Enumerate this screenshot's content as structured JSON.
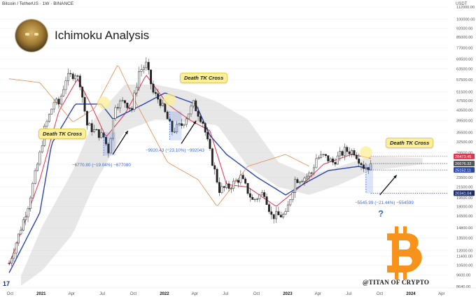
{
  "header": {
    "symbol_line": "Bitcoin / TetherUS · 1W · BINANCE",
    "currency": "USDT"
  },
  "title": "Ichimoku Analysis",
  "watermark": "@TITAN OF CRYPTO",
  "tv_logo": "17",
  "annotations": {
    "tk1": "Death TK Cross",
    "tk2": "Death TK Cross",
    "tk3": "Death TK Cross",
    "measure1": "−6770.80 (−19.04%) −677080",
    "measure2": "−9920.43 (−23.10%) −992043",
    "measure3": "−5545.99 (−21.44%) −554599",
    "question": "?"
  },
  "colors": {
    "up_candle": "#222222",
    "down_candle": "#222222",
    "tenkan": "#e0344f",
    "kijun": "#2c45a8",
    "chikou": "#e8884d",
    "cloud": "#c9c9c9",
    "measure": "#3d6bd6",
    "callout": "#fbef9a"
  },
  "chart_data": {
    "type": "candlestick",
    "title": "",
    "symbol": "BTC/USDT",
    "interval": "1W",
    "exchange": "BINANCE",
    "yscale": "log",
    "ylim": [
      8640,
      112000
    ],
    "y_ticks": [
      "112000.00",
      "100000.00",
      "92000.00",
      "85000.00",
      "77000.00",
      "69500.00",
      "63500.00",
      "57500.00",
      "51500.00",
      "47500.00",
      "43500.00",
      "39500.00",
      "35500.00",
      "32500.00",
      "29500.00",
      "26500.00",
      "23500.00",
      "21500.00",
      "19500.00",
      "18000.00",
      "16500.00",
      "14800.00",
      "13500.00",
      "12000.00",
      "11400.00",
      "10500.00",
      "9600.00",
      "8640.00"
    ],
    "x_ticks": [
      "Oct",
      "2021",
      "Apr",
      "Jul",
      "Oct",
      "2022",
      "Apr",
      "Jul",
      "Oct",
      "2023",
      "Apr",
      "Jul",
      "Oct",
      "2024",
      "Apr"
    ],
    "price_badges": [
      {
        "value": "28473.45",
        "color": "#e0344f"
      },
      {
        "value": "26676.32",
        "color": "#555555"
      },
      {
        "value": "25152.11",
        "color": "#2c45a8"
      },
      {
        "value": "20341.04",
        "color": "#1a2b6b"
      }
    ],
    "series": [
      {
        "name": "BTC price (weekly)",
        "points": [
          [
            "2020-09-28",
            10700
          ],
          [
            "2020-10-26",
            13800
          ],
          [
            "2020-11-23",
            18200
          ],
          [
            "2020-12-28",
            29000
          ],
          [
            "2021-01-11",
            36500
          ],
          [
            "2021-02-08",
            47000
          ],
          [
            "2021-02-22",
            46000
          ],
          [
            "2021-03-15",
            58000
          ],
          [
            "2021-04-12",
            61000
          ],
          [
            "2021-04-26",
            56000
          ],
          [
            "2021-05-17",
            38000
          ],
          [
            "2021-06-07",
            36000
          ],
          [
            "2021-07-05",
            34000
          ],
          [
            "2021-07-19",
            30000
          ],
          [
            "2021-08-09",
            46000
          ],
          [
            "2021-09-06",
            47000
          ],
          [
            "2021-09-27",
            44000
          ],
          [
            "2021-10-18",
            62000
          ],
          [
            "2021-11-08",
            66000
          ],
          [
            "2021-11-29",
            51000
          ],
          [
            "2021-12-20",
            47000
          ],
          [
            "2022-01-24",
            36000
          ],
          [
            "2022-02-21",
            38000
          ],
          [
            "2022-03-28",
            46000
          ],
          [
            "2022-04-25",
            39000
          ],
          [
            "2022-05-16",
            29500
          ],
          [
            "2022-06-13",
            21000
          ],
          [
            "2022-07-11",
            21500
          ],
          [
            "2022-08-15",
            23500
          ],
          [
            "2022-09-19",
            19000
          ],
          [
            "2022-10-24",
            20500
          ],
          [
            "2022-11-14",
            16500
          ],
          [
            "2022-12-26",
            16600
          ],
          [
            "2023-01-23",
            23000
          ],
          [
            "2023-02-20",
            23500
          ],
          [
            "2023-03-13",
            24500
          ],
          [
            "2023-03-27",
            28000
          ],
          [
            "2023-04-17",
            28500
          ],
          [
            "2023-05-15",
            27000
          ],
          [
            "2023-06-19",
            30000
          ],
          [
            "2023-07-17",
            29800
          ],
          [
            "2023-08-14",
            26000
          ],
          [
            "2023-09-04",
            25900
          ]
        ]
      },
      {
        "name": "Tenkan-sen",
        "points": [
          [
            "2020-09-28",
            10500
          ],
          [
            "2020-12-28",
            23000
          ],
          [
            "2021-02-22",
            43000
          ],
          [
            "2021-04-19",
            58000
          ],
          [
            "2021-05-31",
            45000
          ],
          [
            "2021-07-12",
            34000
          ],
          [
            "2021-09-06",
            42000
          ],
          [
            "2021-11-08",
            60000
          ],
          [
            "2022-01-10",
            46000
          ],
          [
            "2022-03-14",
            40000
          ],
          [
            "2022-05-16",
            36000
          ],
          [
            "2022-07-04",
            22000
          ],
          [
            "2022-09-05",
            21500
          ],
          [
            "2022-11-28",
            18000
          ],
          [
            "2023-02-06",
            21500
          ],
          [
            "2023-04-17",
            26500
          ],
          [
            "2023-07-10",
            29000
          ],
          [
            "2023-09-04",
            28000
          ]
        ]
      },
      {
        "name": "Kijun-sen",
        "points": [
          [
            "2020-09-28",
            9800
          ],
          [
            "2020-12-28",
            17000
          ],
          [
            "2021-02-01",
            32000
          ],
          [
            "2021-04-12",
            46000
          ],
          [
            "2021-06-28",
            46000
          ],
          [
            "2021-08-02",
            40000
          ],
          [
            "2021-11-01",
            46000
          ],
          [
            "2022-01-03",
            51000
          ],
          [
            "2022-02-07",
            49000
          ],
          [
            "2022-04-04",
            46000
          ],
          [
            "2022-05-16",
            34500
          ],
          [
            "2022-07-04",
            29000
          ],
          [
            "2022-10-03",
            23500
          ],
          [
            "2022-12-26",
            20000
          ],
          [
            "2023-02-27",
            22500
          ],
          [
            "2023-05-01",
            25000
          ],
          [
            "2023-07-31",
            26000
          ],
          [
            "2023-09-04",
            25200
          ]
        ]
      },
      {
        "name": "Chikou span",
        "points": [
          [
            "2020-09-28",
            58000
          ],
          [
            "2020-12-28",
            56000
          ],
          [
            "2021-04-05",
            39000
          ],
          [
            "2021-06-07",
            44000
          ],
          [
            "2021-08-16",
            66000
          ],
          [
            "2021-10-11",
            46000
          ],
          [
            "2022-01-10",
            27000
          ],
          [
            "2022-04-11",
            23000
          ],
          [
            "2022-06-06",
            18000
          ],
          [
            "2022-09-05",
            26000
          ],
          [
            "2022-12-26",
            29000
          ],
          [
            "2023-03-06",
            26000
          ]
        ]
      }
    ],
    "cloud": {
      "name": "Kumo",
      "upper": [
        [
          "2020-11-02",
          9500
        ],
        [
          "2021-01-04",
          15000
        ],
        [
          "2021-04-05",
          25000
        ],
        [
          "2021-06-07",
          40000
        ],
        [
          "2021-09-06",
          55000
        ],
        [
          "2021-12-06",
          55000
        ],
        [
          "2022-03-07",
          52000
        ],
        [
          "2022-06-06",
          47000
        ],
        [
          "2022-09-05",
          40000
        ],
        [
          "2022-12-05",
          27000
        ],
        [
          "2023-03-06",
          24000
        ],
        [
          "2023-06-05",
          26000
        ],
        [
          "2023-09-04",
          28500
        ],
        [
          "2024-02-05",
          28000
        ]
      ],
      "lower": [
        [
          "2020-11-02",
          8700
        ],
        [
          "2021-01-04",
          10000
        ],
        [
          "2021-04-05",
          14000
        ],
        [
          "2021-06-07",
          22000
        ],
        [
          "2021-09-06",
          36000
        ],
        [
          "2021-12-06",
          40000
        ],
        [
          "2022-03-07",
          39000
        ],
        [
          "2022-06-06",
          38000
        ],
        [
          "2022-09-05",
          26000
        ],
        [
          "2022-12-05",
          21500
        ],
        [
          "2023-03-06",
          20000
        ],
        [
          "2023-06-05",
          22000
        ],
        [
          "2023-09-04",
          25000
        ],
        [
          "2024-02-05",
          26500
        ]
      ]
    }
  }
}
